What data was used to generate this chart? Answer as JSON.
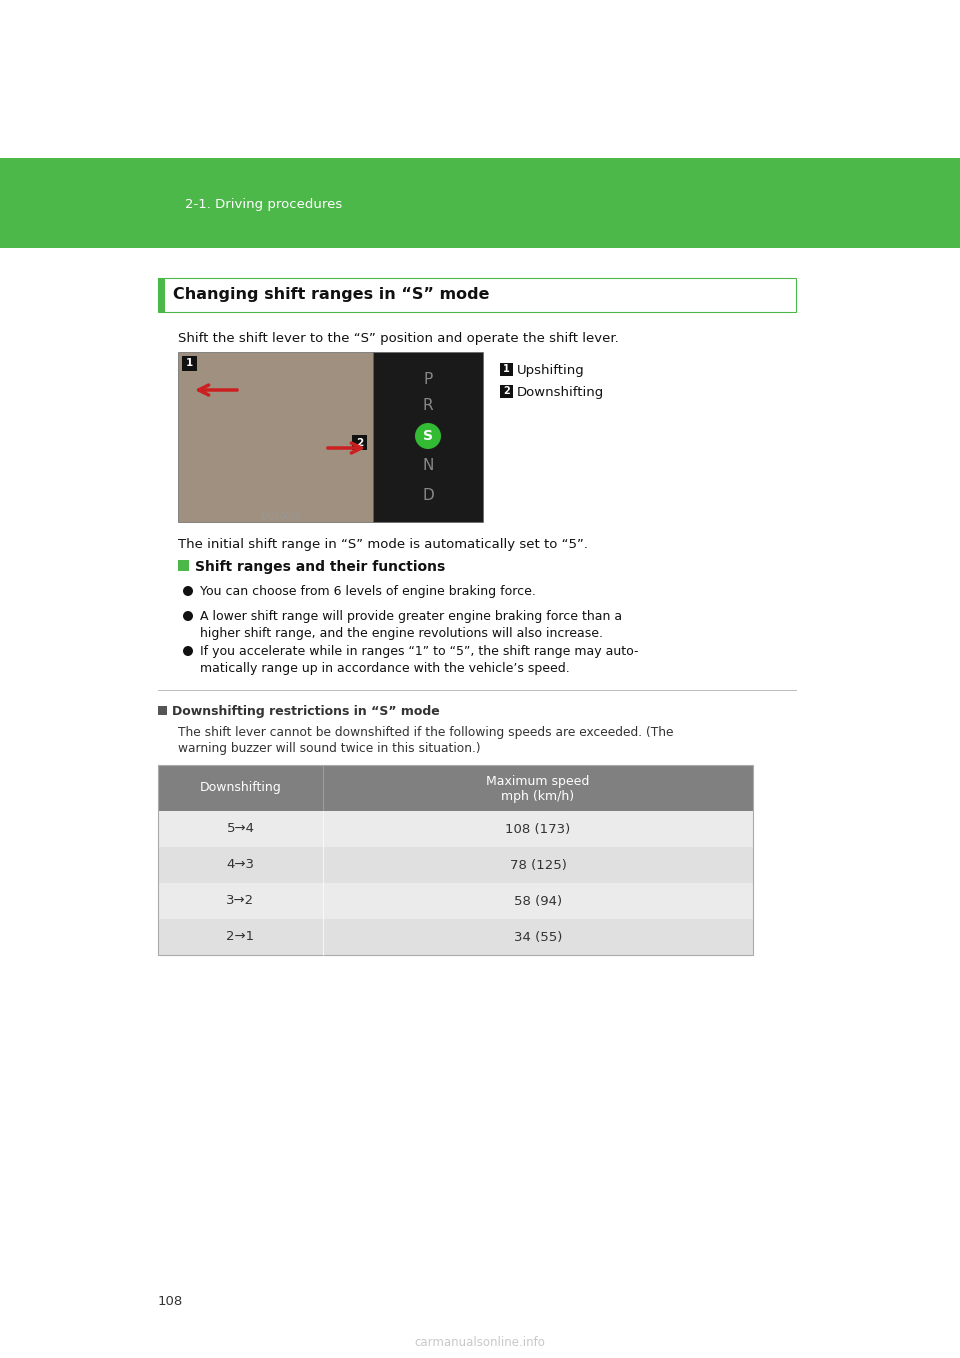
{
  "page_bg": "#ffffff",
  "green_header_color": "#4db84a",
  "green_header_text": "2-1. Driving procedures",
  "green_header_text_color": "#ffffff",
  "section_title": "Changing shift ranges in “S” mode",
  "section_title_border_color": "#4db84a",
  "intro_text": "Shift the shift lever to the “S” position and operate the shift lever.",
  "upshift_label": "Upshifting",
  "downshift_label": "Downshifting",
  "initial_text": "The initial shift range in “S” mode is automatically set to “5”.",
  "shift_ranges_heading": "Shift ranges and their functions",
  "shift_ranges_heading_color": "#4db84a",
  "bullet1": "You can choose from 6 levels of engine braking force.",
  "bullet2_line1": "A lower shift range will provide greater engine braking force than a",
  "bullet2_line2": "higher shift range, and the engine revolutions will also increase.",
  "bullet3_line1": "If you accelerate while in ranges “1” to “5”, the shift range may auto-",
  "bullet3_line2": "matically range up in accordance with the vehicle’s speed.",
  "divider_color": "#bbbbbb",
  "downshift_section_heading": "Downshifting restrictions in “S” mode",
  "downshift_intro_line1": "The shift lever cannot be downshifted if the following speeds are exceeded. (The",
  "downshift_intro_line2": "warning buzzer will sound twice in this situation.)",
  "table_header_bg": "#808080",
  "table_header_text_color": "#ffffff",
  "table_col1_header": "Downshifting",
  "table_col2_header_line1": "Maximum speed",
  "table_col2_header_line2": "mph (km/h)",
  "table_rows": [
    [
      "5→4",
      "108 (173)"
    ],
    [
      "4→3",
      "78 (125)"
    ],
    [
      "3→2",
      "58 (94)"
    ],
    [
      "2→1",
      "34 (55)"
    ]
  ],
  "table_row_bg_alt1": "#ebebeb",
  "table_row_bg_alt2": "#e0e0e0",
  "page_number": "108",
  "watermark_text": "carmanualsonline.info",
  "watermark_color": "#c8c8c8",
  "img_left_color": "#a09080",
  "img_right_color": "#1a1a1a",
  "gear_labels": [
    "P",
    "R",
    "S",
    "N",
    "D"
  ],
  "gear_label_color": "#888888",
  "gear_s_circle_color": "#33bb33",
  "num_label_bg": "#111111"
}
